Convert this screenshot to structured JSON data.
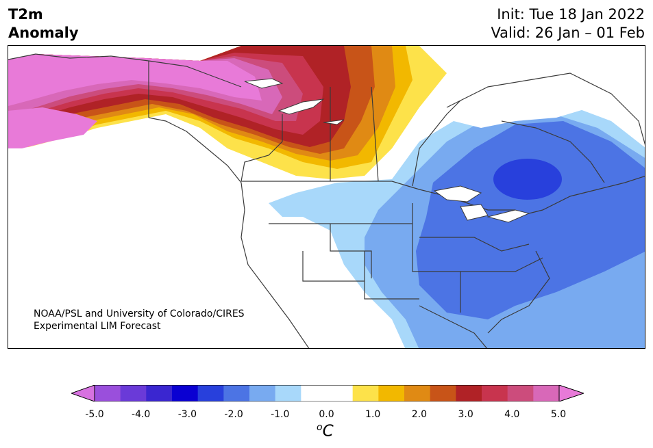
{
  "title": {
    "left_line1": "T2m",
    "left_line2": "Anomaly",
    "init": "Init: Tue 18 Jan 2022",
    "valid": "Valid: 26 Jan – 01 Feb"
  },
  "credit": {
    "line1": "NOAA/PSL and University of Colorado/CIRES",
    "line2": "Experimental LIM Forecast"
  },
  "colorbar": {
    "ticks": [
      "-5.0",
      "-4.0",
      "-3.0",
      "-2.0",
      "-1.0",
      "0.0",
      "1.0",
      "2.0",
      "3.0",
      "4.0",
      "5.0"
    ],
    "unit_base": "C",
    "unit_sup": "o",
    "colors": [
      "#d772e0",
      "#9a4fdc",
      "#6a3ad8",
      "#3a26d0",
      "#0a00d2",
      "#2840dc",
      "#4c74e4",
      "#78aaf0",
      "#a8d8fa",
      "#ffffff",
      "#ffffff",
      "#fde24a",
      "#f2b800",
      "#e08a14",
      "#c85418",
      "#b02226",
      "#c8344e",
      "#cc4c7c",
      "#d868b8",
      "#e87ad8"
    ]
  },
  "map_colors": {
    "land": "#ffffff",
    "border": "#3a3a3a"
  }
}
